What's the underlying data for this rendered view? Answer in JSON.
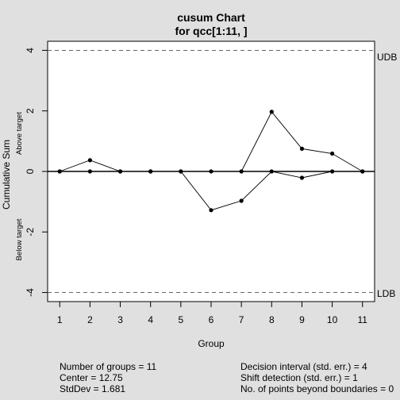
{
  "chart_data": {
    "type": "line",
    "title_line1": "cusum Chart",
    "title_line2": "for qcc[1:11, ]",
    "xlabel": "Group",
    "ylabel": "Cumulative Sum",
    "upper_side_label": "Above target",
    "lower_side_label": "Below target",
    "x": [
      1,
      2,
      3,
      4,
      5,
      6,
      7,
      8,
      9,
      10,
      11
    ],
    "x_ticks": [
      "1",
      "2",
      "3",
      "4",
      "5",
      "6",
      "7",
      "8",
      "9",
      "10",
      "11"
    ],
    "y_ticks": [
      "-4",
      "-2",
      "0",
      "2",
      "4"
    ],
    "xlim": [
      0.6,
      11.4
    ],
    "ylim": [
      -4.3,
      4.3
    ],
    "series": [
      {
        "values": [
          0,
          0.37,
          0,
          0,
          0,
          0,
          0,
          1.97,
          0.75,
          0.59,
          0
        ]
      },
      {
        "values": [
          0,
          0,
          0,
          0,
          0,
          -1.28,
          -0.97,
          0,
          -0.21,
          0,
          0
        ]
      }
    ],
    "decision_upper": 4,
    "decision_lower": -4,
    "udb_label": "UDB",
    "ldb_label": "LDB",
    "center_line": 0,
    "grid": false
  },
  "stats": {
    "number_of_groups": "Number of groups = 11",
    "center": "Center = 12.75",
    "stddev": "StdDev = 1.681",
    "decision_interval": "Decision interval (std. err.) = 4",
    "shift_detection": "Shift detection (std. err.) = 1",
    "points_beyond": "No. of points beyond boundaries = 0"
  }
}
